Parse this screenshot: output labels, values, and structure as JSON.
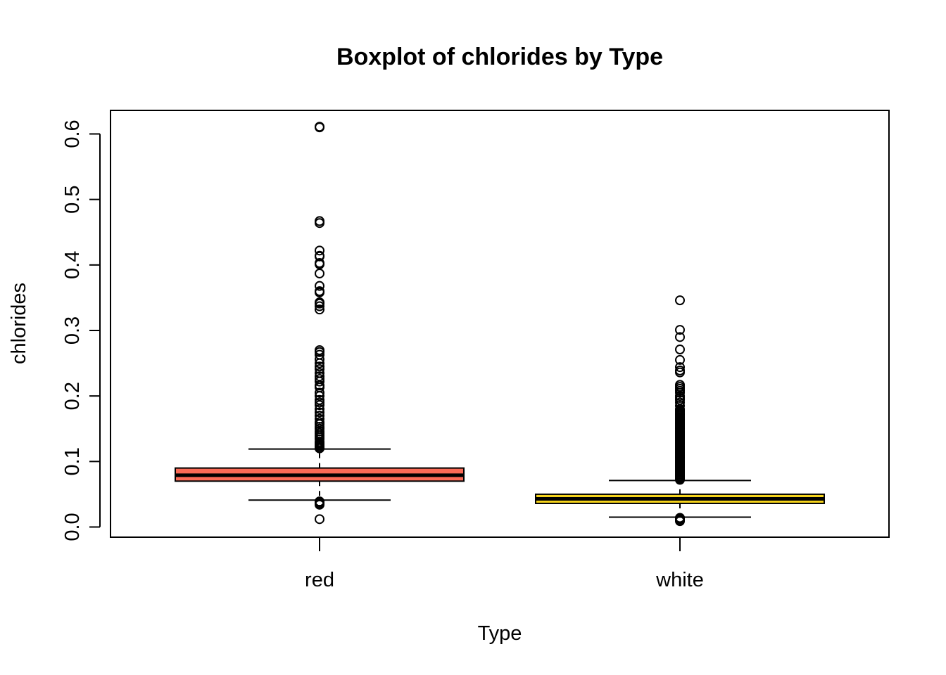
{
  "chart_data": {
    "type": "boxplot",
    "title": "Boxplot of chlorides by Type",
    "xlabel": "Type",
    "ylabel": "chlorides",
    "ylim": [
      -0.015,
      0.635
    ],
    "yticks": [
      0.0,
      0.1,
      0.2,
      0.3,
      0.4,
      0.5,
      0.6
    ],
    "ytick_labels": [
      "0.0",
      "0.1",
      "0.2",
      "0.3",
      "0.4",
      "0.5",
      "0.6"
    ],
    "grid": false,
    "legend": "none",
    "categories": [
      "red",
      "white"
    ],
    "series": [
      {
        "category": "red",
        "color": "#FA6A56",
        "whisker_low": 0.041,
        "q1": 0.07,
        "median": 0.079,
        "q3": 0.09,
        "whisker_high": 0.119,
        "outliers": [
          0.012,
          0.034,
          0.036,
          0.038,
          0.039,
          0.12,
          0.122,
          0.124,
          0.126,
          0.128,
          0.13,
          0.134,
          0.137,
          0.14,
          0.143,
          0.146,
          0.15,
          0.153,
          0.157,
          0.16,
          0.165,
          0.17,
          0.175,
          0.18,
          0.186,
          0.19,
          0.194,
          0.2,
          0.205,
          0.213,
          0.216,
          0.222,
          0.226,
          0.23,
          0.235,
          0.241,
          0.245,
          0.25,
          0.256,
          0.263,
          0.267,
          0.27,
          0.332,
          0.337,
          0.341,
          0.343,
          0.358,
          0.36,
          0.368,
          0.387,
          0.401,
          0.403,
          0.413,
          0.414,
          0.422,
          0.464,
          0.467,
          0.61,
          0.611
        ]
      },
      {
        "category": "white",
        "color": "#F5D31C",
        "whisker_low": 0.015,
        "q1": 0.036,
        "median": 0.043,
        "q3": 0.05,
        "whisker_high": 0.071,
        "outliers": [
          0.009,
          0.01,
          0.012,
          0.013,
          0.014,
          0.072,
          0.074,
          0.076,
          0.078,
          0.08,
          0.082,
          0.084,
          0.086,
          0.088,
          0.09,
          0.092,
          0.094,
          0.096,
          0.098,
          0.1,
          0.102,
          0.104,
          0.106,
          0.108,
          0.11,
          0.112,
          0.114,
          0.116,
          0.118,
          0.12,
          0.122,
          0.124,
          0.126,
          0.128,
          0.13,
          0.132,
          0.134,
          0.136,
          0.138,
          0.14,
          0.142,
          0.144,
          0.146,
          0.148,
          0.15,
          0.152,
          0.154,
          0.156,
          0.158,
          0.16,
          0.162,
          0.164,
          0.166,
          0.168,
          0.17,
          0.172,
          0.174,
          0.176,
          0.178,
          0.18,
          0.185,
          0.19,
          0.194,
          0.197,
          0.2,
          0.205,
          0.208,
          0.211,
          0.214,
          0.217,
          0.236,
          0.239,
          0.244,
          0.255,
          0.271,
          0.29,
          0.301,
          0.346
        ]
      }
    ]
  }
}
